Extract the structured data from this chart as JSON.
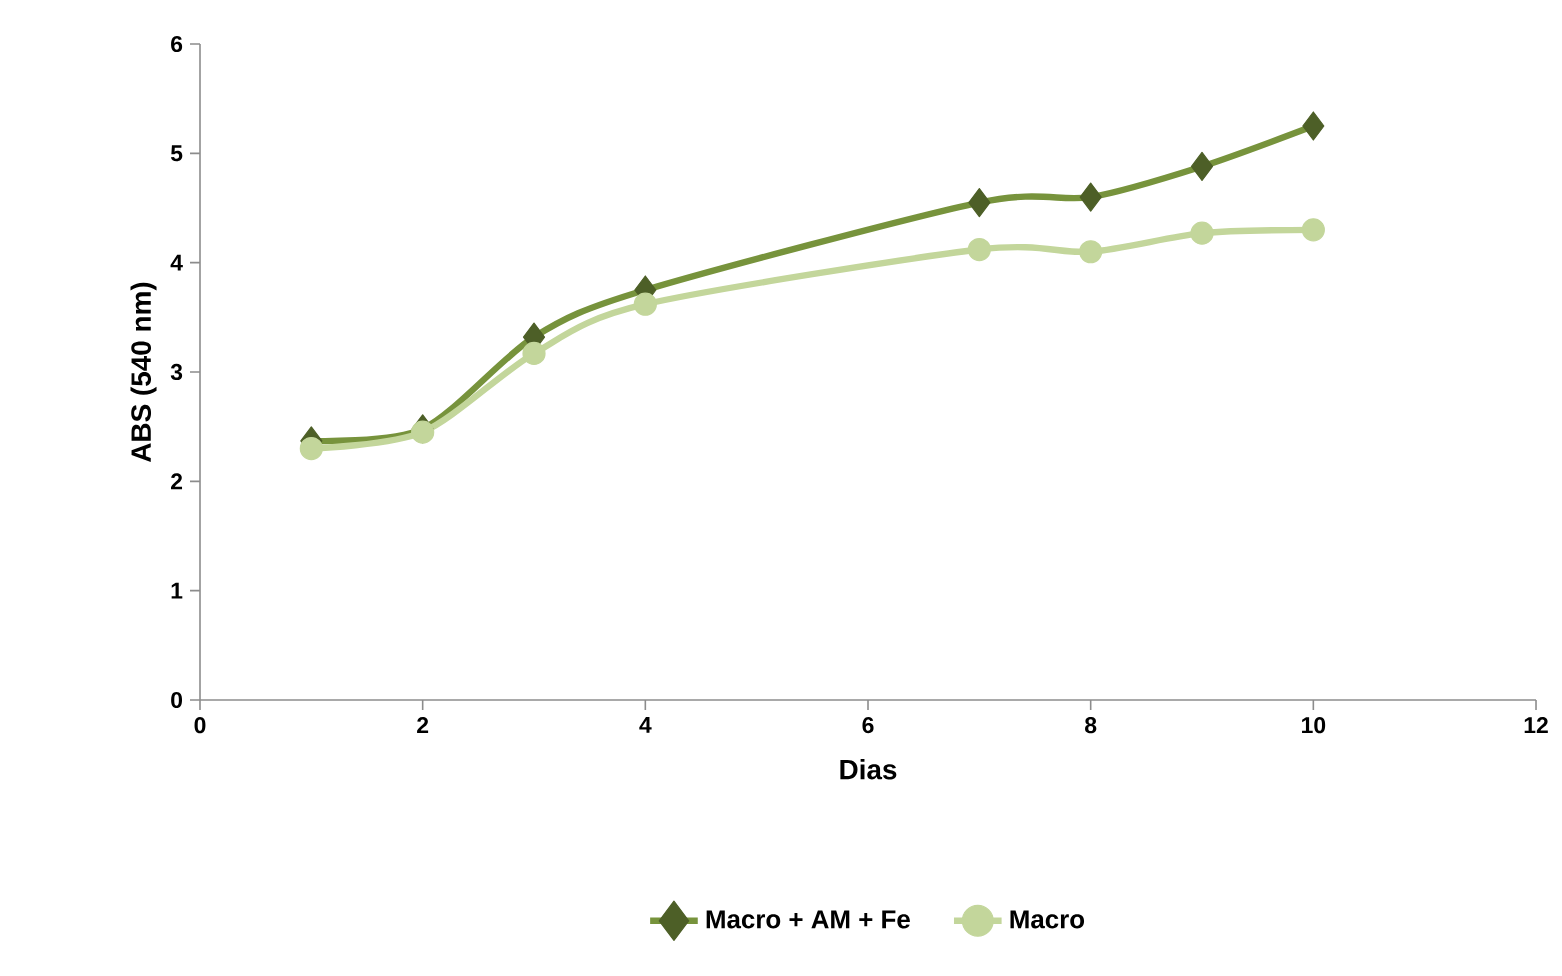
{
  "chart_data": {
    "type": "line",
    "xlabel": "Dias",
    "ylabel": "ABS (540 nm)",
    "x": [
      1,
      2,
      3,
      4,
      7,
      8,
      9,
      10
    ],
    "series": [
      {
        "name": "Macro + AM + Fe",
        "color": "#77933c",
        "marker": "diamond",
        "values": [
          2.37,
          2.48,
          3.32,
          3.75,
          4.55,
          4.6,
          4.88,
          5.25
        ]
      },
      {
        "name": "Macro",
        "color": "#c3d69b",
        "marker": "circle",
        "values": [
          2.3,
          2.45,
          3.17,
          3.62,
          4.12,
          4.1,
          4.27,
          4.3
        ]
      }
    ],
    "xlim": [
      0,
      12
    ],
    "xticks": [
      0,
      2,
      4,
      6,
      8,
      10,
      12
    ],
    "ylim": [
      0,
      6
    ],
    "yticks": [
      0,
      1,
      2,
      3,
      4,
      5,
      6
    ],
    "grid": false,
    "legend": "bottom"
  }
}
